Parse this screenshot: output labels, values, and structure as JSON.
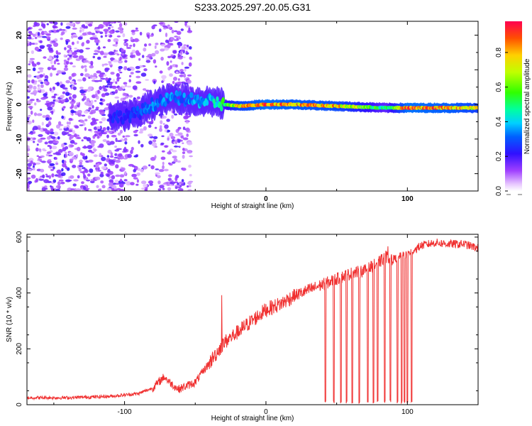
{
  "title": "S233.2025.297.20.05.G31",
  "chart_data": [
    {
      "type": "heatmap",
      "name": "spectrogram",
      "xlabel": "Height of straight line (km)",
      "ylabel": "Frequency (Hz)",
      "xlim": [
        -169,
        150
      ],
      "ylim": [
        -25,
        24
      ],
      "xticks": [
        -100,
        0,
        100
      ],
      "yticks": [
        -20,
        -10,
        0,
        10,
        20
      ],
      "colorbar": {
        "label": "Normalized spectral amplitude",
        "range": [
          0.0,
          0.98
        ],
        "ticks": [
          0.0,
          0.2,
          0.4,
          0.6,
          0.8
        ]
      },
      "trace": [
        {
          "x": -100,
          "f": -3.5,
          "amp": 0.25
        },
        {
          "x": -90,
          "f": -2.5,
          "amp": 0.3
        },
        {
          "x": -80,
          "f": 0,
          "amp": 0.35
        },
        {
          "x": -65,
          "f": 2,
          "amp": 0.35
        },
        {
          "x": -50,
          "f": 1,
          "amp": 0.4
        },
        {
          "x": -40,
          "f": 1,
          "amp": 0.4
        },
        {
          "x": -30,
          "f": 0,
          "amp": 0.55
        },
        {
          "x": -20,
          "f": -0.5,
          "amp": 0.8
        },
        {
          "x": 0,
          "f": 0,
          "amp": 0.95
        },
        {
          "x": 20,
          "f": 0,
          "amp": 0.9
        },
        {
          "x": 50,
          "f": -0.5,
          "amp": 0.85
        },
        {
          "x": 85,
          "f": -1,
          "amp": 0.5
        },
        {
          "x": 100,
          "f": -1,
          "amp": 0.95
        },
        {
          "x": 130,
          "f": -1,
          "amp": 0.9
        },
        {
          "x": 150,
          "f": -1,
          "amp": 0.8
        }
      ]
    },
    {
      "type": "line",
      "name": "snr",
      "xlabel": "Height of straight line (km)",
      "ylabel": "SNR (10 * v/v)",
      "xlim": [
        -169,
        150
      ],
      "ylim": [
        0,
        610
      ],
      "xticks": [
        -100,
        0,
        100
      ],
      "yticks": [
        0,
        200,
        400,
        600
      ],
      "series": [
        {
          "name": "SNR",
          "color": "#f03030",
          "x": [
            -169,
            -140,
            -110,
            -90,
            -80,
            -72,
            -68,
            -62,
            -50,
            -40,
            -30,
            -20,
            -10,
            0,
            10,
            20,
            30,
            40,
            50,
            60,
            70,
            80,
            85,
            90,
            100,
            110,
            120,
            130,
            140,
            150
          ],
          "y": [
            25,
            25,
            30,
            40,
            60,
            100,
            80,
            55,
            80,
            150,
            220,
            260,
            300,
            340,
            360,
            390,
            410,
            430,
            450,
            470,
            480,
            510,
            530,
            520,
            540,
            570,
            580,
            575,
            575,
            560
          ]
        }
      ],
      "dropouts_x": [
        42,
        48,
        53,
        57,
        61,
        66,
        72,
        76,
        79,
        84,
        88,
        93,
        96,
        98,
        100,
        103
      ]
    }
  ]
}
